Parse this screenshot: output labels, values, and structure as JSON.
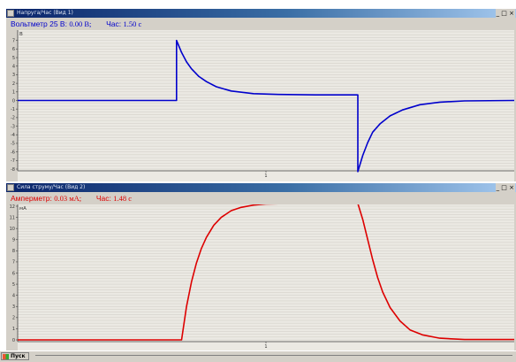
{
  "windows": [
    {
      "title": "Напруга/Час (Вид 1)",
      "title_buttons": "_ □ ×",
      "readout": {
        "instrument_label": "Вольтметр 25 В:",
        "instrument_value": "0.00 В;",
        "time_label": "Час:",
        "time_value": "1.50 с"
      },
      "color": "#0000cc",
      "y_unit": "В",
      "x_tick_label": "1"
    },
    {
      "title": "Сила струму/Час (Вид 2)",
      "title_buttons": "_ □ ×",
      "readout": {
        "instrument_label": "Амперметр:",
        "instrument_value": "0.03 мА;",
        "time_label": "Час:",
        "time_value": "1.48 с"
      },
      "color": "#dd0000",
      "y_unit": "мА",
      "x_tick_label": "1"
    }
  ],
  "chart_data": [
    {
      "type": "line",
      "title": "",
      "xlabel": "",
      "ylabel": "В",
      "ylim": [
        -8,
        8
      ],
      "y_ticks": [
        7,
        6,
        5,
        4,
        3,
        2,
        1,
        0,
        -1,
        -2,
        -3,
        -4,
        -5,
        -6,
        -7,
        -8
      ],
      "x_tick_labels": [
        "1"
      ],
      "xlim": [
        0,
        2
      ],
      "grid": true,
      "series": [
        {
          "color": "#0000cc",
          "x": [
            0,
            0.64,
            0.64,
            0.66,
            0.68,
            0.7,
            0.73,
            0.76,
            0.8,
            0.86,
            0.95,
            1.05,
            1.2,
            1.37,
            1.37,
            1.39,
            1.41,
            1.43,
            1.46,
            1.5,
            1.55,
            1.62,
            1.7,
            1.8,
            2.0
          ],
          "values": [
            0,
            0,
            7.0,
            5.6,
            4.5,
            3.7,
            2.8,
            2.2,
            1.6,
            1.1,
            0.8,
            0.7,
            0.65,
            0.65,
            -8.3,
            -6.4,
            -4.9,
            -3.7,
            -2.7,
            -1.8,
            -1.1,
            -0.5,
            -0.2,
            -0.05,
            0
          ]
        }
      ]
    },
    {
      "type": "line",
      "title": "",
      "xlabel": "",
      "ylabel": "мА",
      "ylim": [
        0,
        12
      ],
      "y_ticks": [
        12,
        11,
        10,
        9,
        8,
        7,
        6,
        5,
        4,
        3,
        2,
        1,
        0
      ],
      "x_tick_labels": [
        "1"
      ],
      "xlim": [
        0,
        2
      ],
      "grid": true,
      "series": [
        {
          "color": "#dd0000",
          "x": [
            0,
            0.66,
            0.68,
            0.7,
            0.72,
            0.74,
            0.76,
            0.79,
            0.82,
            0.86,
            0.9,
            0.95,
            1.0,
            1.1,
            1.25,
            1.37,
            1.39,
            1.41,
            1.43,
            1.45,
            1.47,
            1.5,
            1.54,
            1.58,
            1.63,
            1.7,
            1.8,
            2.0
          ],
          "values": [
            0,
            0,
            3.0,
            5.2,
            6.9,
            8.2,
            9.2,
            10.3,
            11.0,
            11.6,
            11.9,
            12.1,
            12.2,
            12.25,
            12.25,
            12.25,
            10.8,
            9.0,
            7.2,
            5.6,
            4.3,
            2.9,
            1.7,
            0.9,
            0.45,
            0.15,
            0.03,
            0.03
          ]
        }
      ]
    }
  ],
  "taskbar": {
    "start_label": "Пуск"
  }
}
